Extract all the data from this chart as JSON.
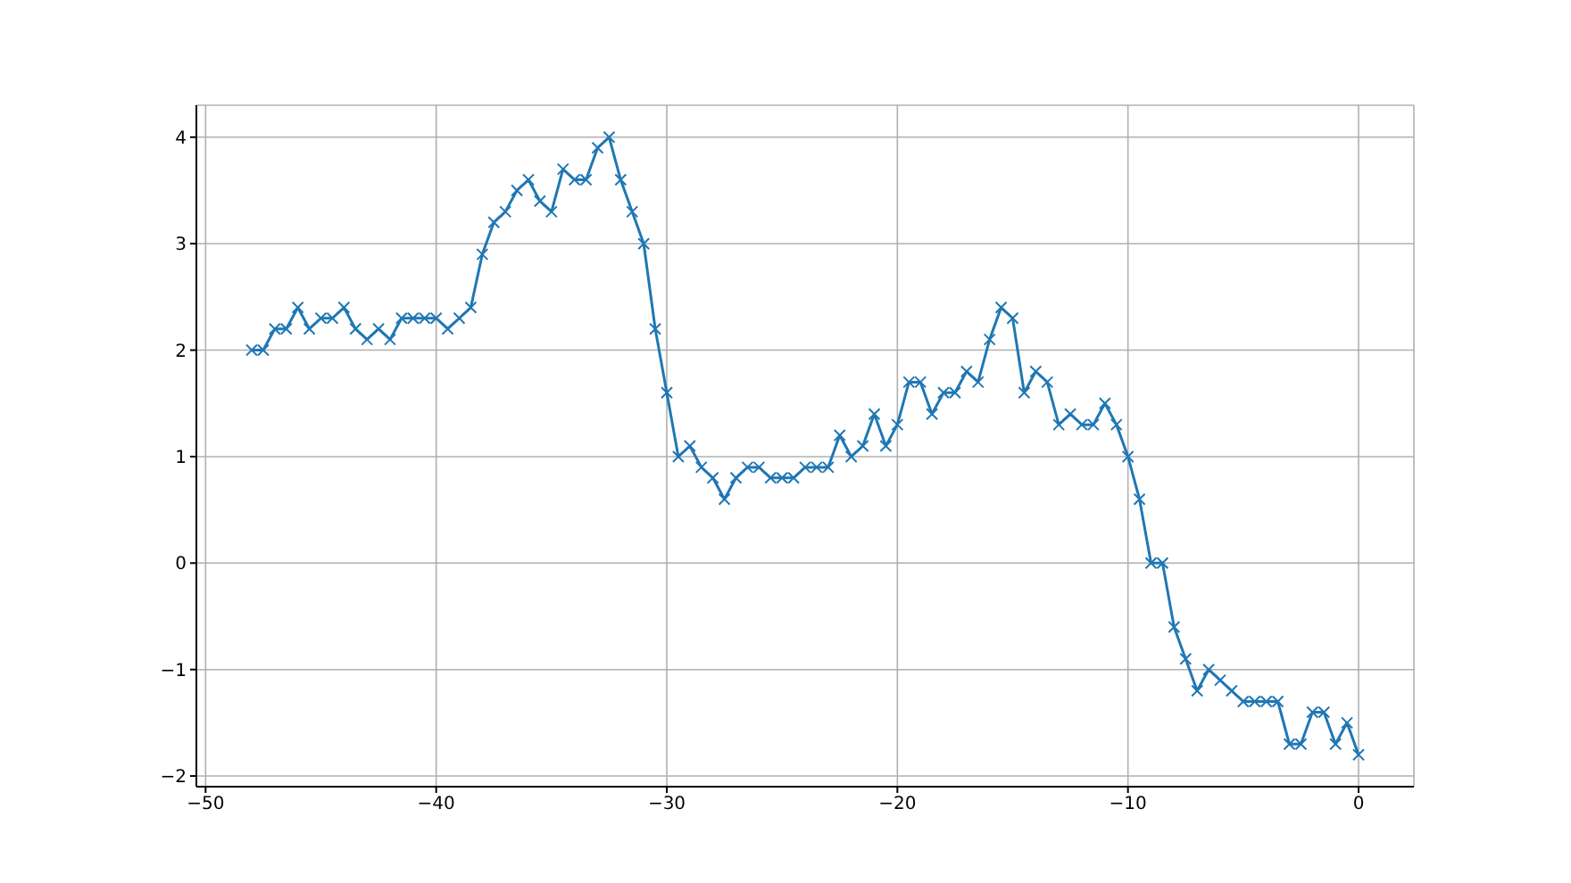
{
  "chart_data": {
    "type": "line",
    "color": "#1f77b4",
    "marker": "cross",
    "line_style": "solid",
    "grid": true,
    "x": [
      -48,
      -47.5,
      -47,
      -46.5,
      -46,
      -45.5,
      -45,
      -44.5,
      -44,
      -43.5,
      -43,
      -42.5,
      -42,
      -41.5,
      -41,
      -40.5,
      -40,
      -39.5,
      -39,
      -38.5,
      -38,
      -37.5,
      -37,
      -36.5,
      -36,
      -35.5,
      -35,
      -34.5,
      -34,
      -33.5,
      -33,
      -32.5,
      -32,
      -31.5,
      -31,
      -30.5,
      -30,
      -29.5,
      -29,
      -28.5,
      -28,
      -27.5,
      -27,
      -26.5,
      -26,
      -25.5,
      -25,
      -24.5,
      -24,
      -23.5,
      -23,
      -22.5,
      -22,
      -21.5,
      -21,
      -20.5,
      -20,
      -19.5,
      -19,
      -18.5,
      -18,
      -17.5,
      -17,
      -16.5,
      -16,
      -15.5,
      -15,
      -14.5,
      -14,
      -13.5,
      -13,
      -12.5,
      -12,
      -11.5,
      -11,
      -10.5,
      -10,
      -9.5,
      -9,
      -8.5,
      -8,
      -7.5,
      -7,
      -6.5,
      -6,
      -5.5,
      -5,
      -4.5,
      -4,
      -3.5,
      -3,
      -2.5,
      -2,
      -1.5,
      -1,
      -0.5,
      0
    ],
    "values": [
      2.0,
      2.0,
      2.2,
      2.2,
      2.4,
      2.2,
      2.3,
      2.3,
      2.4,
      2.2,
      2.1,
      2.2,
      2.1,
      2.3,
      2.3,
      2.3,
      2.3,
      2.2,
      2.3,
      2.4,
      2.9,
      3.2,
      3.3,
      3.5,
      3.6,
      3.4,
      3.3,
      3.7,
      3.6,
      3.6,
      3.9,
      4.0,
      3.6,
      3.3,
      3.0,
      2.2,
      1.6,
      1.0,
      1.1,
      0.9,
      0.8,
      0.6,
      0.8,
      0.9,
      0.9,
      0.8,
      0.8,
      0.8,
      0.9,
      0.9,
      0.9,
      1.2,
      1.0,
      1.1,
      1.4,
      1.1,
      1.3,
      1.7,
      1.7,
      1.4,
      1.6,
      1.6,
      1.8,
      1.7,
      2.1,
      2.4,
      2.3,
      1.6,
      1.8,
      1.7,
      1.3,
      1.4,
      1.3,
      1.3,
      1.5,
      1.3,
      1.0,
      0.6,
      0.0,
      0.0,
      -0.6,
      -0.9,
      -1.2,
      -1.0,
      -1.1,
      -1.2,
      -1.3,
      -1.3,
      -1.3,
      -1.3,
      -1.7,
      -1.7,
      -1.4,
      -1.4,
      -1.7,
      -1.5,
      -1.8
    ],
    "xlim": [
      -50.4,
      2.4
    ],
    "ylim": [
      -2.1,
      4.3
    ],
    "xticks": [
      -50,
      -40,
      -30,
      -20,
      -10,
      0
    ],
    "yticks": [
      -2,
      -1,
      0,
      1,
      2,
      3,
      4
    ]
  }
}
